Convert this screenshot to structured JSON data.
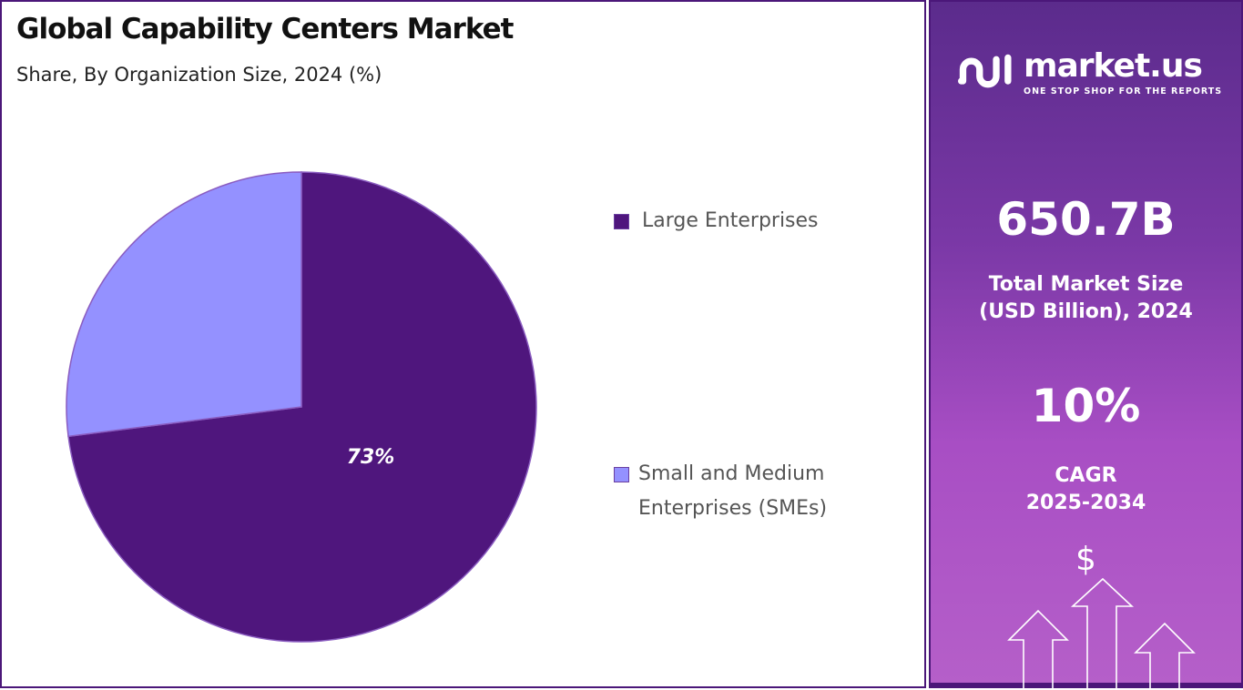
{
  "title": "Global Capability Centers Market",
  "subtitle": "Share, By Organization Size, 2024 (%)",
  "chart_data": {
    "type": "pie",
    "categories": [
      "Large Enterprises",
      "Small and Medium Enterprises (SMEs)"
    ],
    "values": [
      73,
      27
    ],
    "data_labels": [
      "73%",
      ""
    ],
    "colors": [
      "#4f167d",
      "#9491ff"
    ],
    "legend": "right"
  },
  "legend": {
    "items": [
      {
        "line1": "Large Enterprises",
        "line2": ""
      },
      {
        "line1": "Small and Medium",
        "line2": "Enterprises (SMEs)"
      }
    ]
  },
  "panel": {
    "brand": "market.us",
    "tagline": "ONE STOP SHOP FOR THE REPORTS",
    "market_size": "650.7B",
    "market_size_label_1": "Total Market Size",
    "market_size_label_2": "(USD Billion), 2024",
    "cagr": "10%",
    "cagr_label_1": "CAGR",
    "cagr_label_2": "2025-2034",
    "dollar": "$"
  }
}
